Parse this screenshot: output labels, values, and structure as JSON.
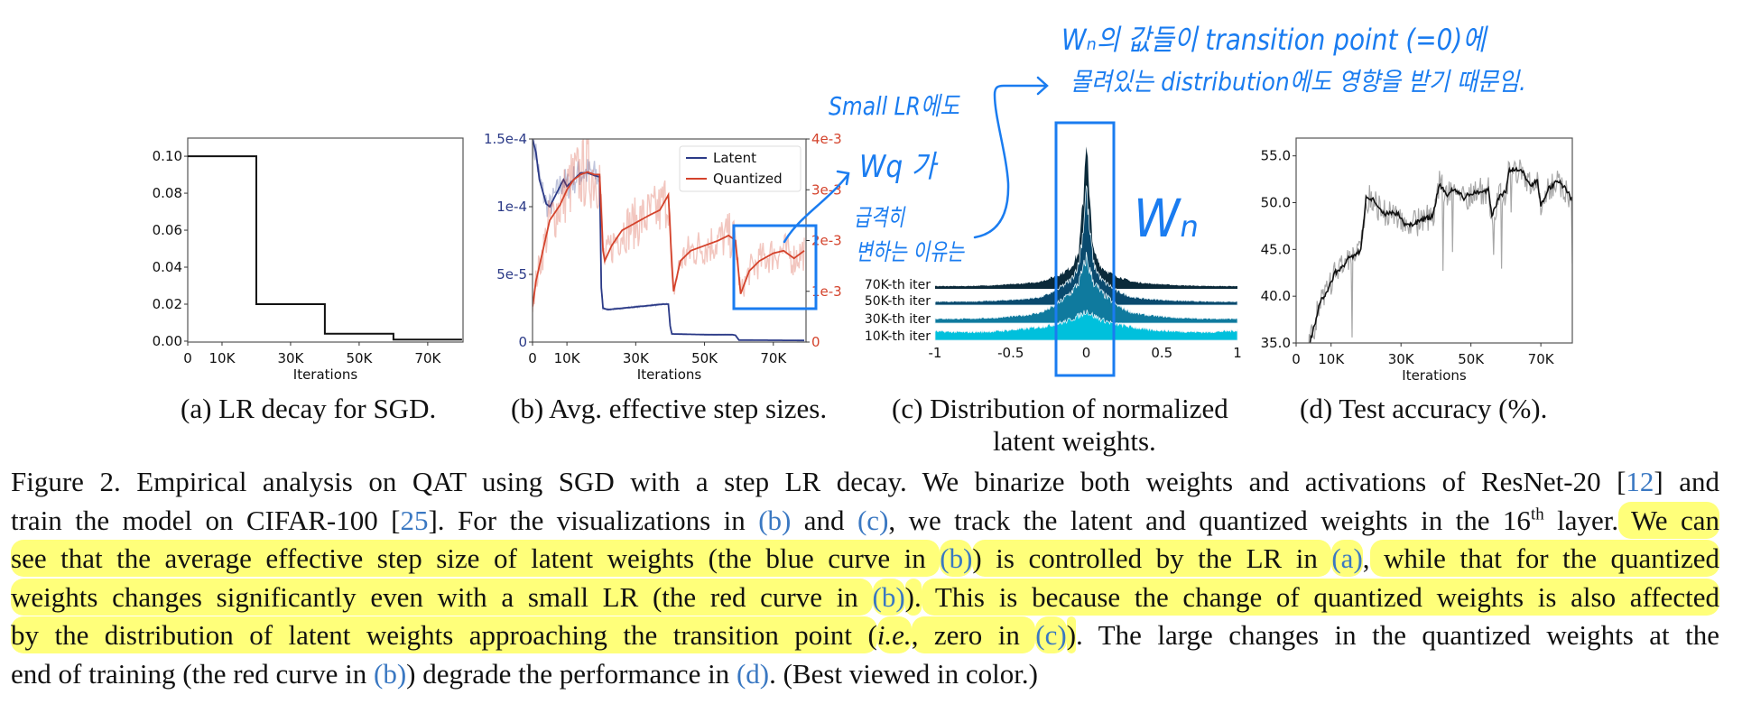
{
  "chart_data": [
    {
      "id": "a",
      "type": "line",
      "title": "",
      "xlabel": "Iterations",
      "ylabel": "",
      "xlim": [
        0,
        80300
      ],
      "ylim": [
        -0.0005,
        0.1098
      ],
      "x_ticks": [
        0,
        10000,
        30000,
        50000,
        70000
      ],
      "x_tick_labels": [
        "0",
        "10K",
        "30K",
        "50K",
        "70K"
      ],
      "y_ticks": [
        0,
        0.02,
        0.04,
        0.06,
        0.08,
        0.1
      ],
      "y_tick_labels": [
        "0.00",
        "0.02",
        "0.04",
        "0.06",
        "0.08",
        "0.10"
      ],
      "series": [
        {
          "name": "LR",
          "color": "#111111",
          "x": [
            0,
            20000,
            20000,
            40000,
            40000,
            60000,
            60000,
            80000
          ],
          "y": [
            0.1,
            0.1,
            0.02,
            0.02,
            0.004,
            0.004,
            0.0008,
            0.0008
          ]
        }
      ]
    },
    {
      "id": "b",
      "type": "line",
      "title": "",
      "xlabel": "Iterations",
      "xlim": [
        0,
        79500
      ],
      "ylim_left": [
        0,
        0.00015
      ],
      "ylim_right": [
        0,
        0.004
      ],
      "x_ticks": [
        0,
        10000,
        30000,
        50000,
        70000
      ],
      "x_tick_labels": [
        "0",
        "10K",
        "30K",
        "50K",
        "70K"
      ],
      "y_ticks_left": [
        0,
        5e-05,
        0.0001,
        0.00015
      ],
      "y_tick_labels_left": [
        "0",
        "5e-5",
        "1e-4",
        "1.5e-4"
      ],
      "y_ticks_right": [
        0,
        0.001,
        0.002,
        0.003,
        0.004
      ],
      "y_tick_labels_right": [
        "0",
        "1e-3",
        "2e-3",
        "3e-3",
        "4e-3"
      ],
      "legend": "top-right",
      "series": [
        {
          "name": "Latent",
          "axis": "left",
          "color": "#2b3a87",
          "x": [
            0,
            1000,
            2000,
            4000,
            5000,
            6000,
            8000,
            9000,
            10000,
            12000,
            14000,
            16000,
            18000,
            19500,
            20000,
            20500,
            22000,
            30000,
            38000,
            39500,
            40000,
            40500,
            50000,
            58000,
            59000,
            60000,
            79000
          ],
          "y": [
            0.00015,
            0.00014,
            0.00012,
            0.000102,
            0.0001,
            0.000105,
            0.000115,
            0.00012,
            0.000115,
            0.00012,
            0.000125,
            0.000125,
            0.000123,
            0.000122,
            4e-05,
            2.5e-05,
            2.4e-05,
            2.6e-05,
            2.8e-05,
            2.8e-05,
            1.2e-05,
            6e-06,
            5.5e-06,
            5.5e-06,
            5e-06,
            1.5e-06,
            1.2e-06
          ]
        },
        {
          "name": "Quantized",
          "axis": "right",
          "color": "#d4432c",
          "x": [
            0,
            1000,
            3000,
            5000,
            8000,
            10000,
            12000,
            14000,
            16000,
            18000,
            19500,
            20500,
            21000,
            23000,
            26000,
            30000,
            34000,
            37000,
            39500,
            40500,
            41000,
            43000,
            46000,
            50000,
            54000,
            57000,
            59000,
            60000,
            60500,
            63000,
            66000,
            70000,
            73000,
            76000,
            79000
          ],
          "y": [
            0.0007,
            0.0012,
            0.0018,
            0.0024,
            0.0027,
            0.003,
            0.0032,
            0.0033,
            0.00335,
            0.0033,
            0.0033,
            0.0018,
            0.0016,
            0.0019,
            0.0022,
            0.00235,
            0.0025,
            0.0026,
            0.0029,
            0.0015,
            0.001,
            0.0016,
            0.0018,
            0.0019,
            0.002,
            0.0021,
            0.002,
            0.0013,
            0.00095,
            0.0014,
            0.0016,
            0.00175,
            0.0018,
            0.00165,
            0.0018
          ]
        }
      ]
    },
    {
      "id": "c",
      "type": "area",
      "title": "",
      "xlabel": "",
      "xlim": [
        -1,
        1
      ],
      "x_ticks": [
        -1,
        -0.5,
        0,
        0.5,
        1
      ],
      "x_tick_labels": [
        "-1",
        "-0.5",
        "0",
        "0.5",
        "1"
      ],
      "x": [
        -1,
        -0.8,
        -0.6,
        -0.4,
        -0.3,
        -0.2,
        -0.15,
        -0.1,
        -0.05,
        -0.02,
        0,
        0.02,
        0.05,
        0.1,
        0.15,
        0.2,
        0.3,
        0.4,
        0.6,
        0.8,
        1
      ],
      "series": [
        {
          "name": "70K-th iter",
          "color": "#0b2a3a",
          "y": [
            3,
            3,
            4,
            6,
            8,
            14,
            18,
            24,
            40,
            100,
            173,
            100,
            40,
            24,
            18,
            14,
            8,
            6,
            4,
            3,
            3
          ]
        },
        {
          "name": "50K-th iter",
          "color": "#0a4a6e",
          "y": [
            4,
            4,
            5,
            7,
            9,
            16,
            22,
            28,
            45,
            85,
            132,
            85,
            45,
            28,
            22,
            16,
            9,
            7,
            5,
            4,
            4
          ]
        },
        {
          "name": "30K-th iter",
          "color": "#0f7a9e",
          "y": [
            5,
            5,
            6,
            9,
            12,
            20,
            27,
            34,
            45,
            60,
            73,
            60,
            45,
            34,
            27,
            20,
            12,
            9,
            6,
            5,
            5
          ]
        },
        {
          "name": "10K-th iter",
          "color": "#00c0dc",
          "y": [
            10,
            9,
            10,
            13,
            15,
            18,
            20,
            23,
            27,
            30,
            33,
            30,
            27,
            23,
            20,
            18,
            15,
            12,
            10,
            9,
            11
          ]
        }
      ]
    },
    {
      "id": "d",
      "type": "line",
      "title": "",
      "xlabel": "Iterations",
      "ylabel": "",
      "xlim": [
        0,
        79000
      ],
      "ylim": [
        35,
        56.9
      ],
      "x_ticks": [
        0,
        10000,
        30000,
        50000,
        70000
      ],
      "x_tick_labels": [
        "0",
        "10K",
        "30K",
        "50K",
        "70K"
      ],
      "y_ticks": [
        35,
        40,
        45,
        50,
        55
      ],
      "y_tick_labels": [
        "35.0",
        "40.0",
        "45.0",
        "50.0",
        "55.0"
      ],
      "series": [
        {
          "name": "Test accuracy",
          "color": "#111111",
          "x": [
            3000,
            5000,
            7000,
            9000,
            11000,
            13000,
            15000,
            17000,
            18500,
            20000,
            22000,
            25000,
            28000,
            30000,
            31000,
            34000,
            37000,
            39000,
            41000,
            43000,
            45000,
            48000,
            50000,
            53000,
            55000,
            56000,
            58000,
            60000,
            61000,
            63000,
            65000,
            67000,
            69000,
            70000,
            72000,
            75000,
            77000,
            79000
          ],
          "y": [
            34,
            36.5,
            39.5,
            40.5,
            42.5,
            43,
            44,
            44.3,
            45,
            50.5,
            50.3,
            48.8,
            49,
            48.5,
            47.5,
            47.8,
            48.3,
            48.5,
            52,
            50.8,
            51.5,
            50.5,
            51,
            51.2,
            51.3,
            48.7,
            50.5,
            51.2,
            53.5,
            53.6,
            53.2,
            51.8,
            52.3,
            49.6,
            51.5,
            52.3,
            51.5,
            50.3
          ]
        }
      ]
    }
  ],
  "subcaptions": {
    "a": "(a) LR decay for SGD.",
    "b": "(b) Avg. effective step sizes.",
    "c_line1": "(c) Distribution of normalized",
    "c_line2": "latent weights.",
    "d": "(d) Test accuracy (%)."
  },
  "annotations": {
    "line1": "Wₙ의 값들이 transition point (=0)에",
    "line2": "몰려있는 distribution에도 영향을 받기 때문임.",
    "small_lr": "Small LR에도",
    "wq": "Wq 가",
    "sudden": "급격히",
    "reason": "변하는 이유는",
    "wn": "Wₙ",
    "color": "#1a7cf0"
  },
  "caption": {
    "lines": [
      [
        {
          "t": "Figure 2. Empirical analysis on QAT using SGD with a step LR decay. We binarize both weights and activations of ResNet-20 [",
          "s": ""
        },
        {
          "t": "12",
          "s": "ref"
        },
        {
          "t": "] and",
          "s": ""
        }
      ],
      [
        {
          "t": "train the model on CIFAR-100 [",
          "s": ""
        },
        {
          "t": "25",
          "s": "ref"
        },
        {
          "t": "]. For the visualizations in ",
          "s": ""
        },
        {
          "t": "(b)",
          "s": "ref"
        },
        {
          "t": " and ",
          "s": ""
        },
        {
          "t": "(c)",
          "s": "ref"
        },
        {
          "t": ", we track the latent and quantized weights in the 16",
          "s": ""
        },
        {
          "t": "th",
          "s": "sup"
        },
        {
          "t": " layer.",
          "s": ""
        },
        {
          "t": " We can",
          "s": "hl"
        }
      ],
      [
        {
          "t": "see that the average effective step size of latent weights (the blue curve in ",
          "s": "hl"
        },
        {
          "t": "(b)",
          "s": "hl ref"
        },
        {
          "t": ") is controlled by the LR in ",
          "s": "hl"
        },
        {
          "t": "(a)",
          "s": "hl ref"
        },
        {
          "t": ",",
          "s": ""
        },
        {
          "t": " while that for the quantized",
          "s": "hl"
        }
      ],
      [
        {
          "t": "weights changes significantly even with a small LR (the red curve in ",
          "s": "hl"
        },
        {
          "t": "(b)",
          "s": "hl ref"
        },
        {
          "t": ").",
          "s": "hl"
        },
        {
          "t": " This is because the change of quantized weights is also affected",
          "s": "hl"
        }
      ],
      [
        {
          "t": "by the distribution of latent weights approaching the transition point (",
          "s": "hl"
        },
        {
          "t": "i.e.",
          "s": "hl it"
        },
        {
          "t": ", zero in ",
          "s": "hl"
        },
        {
          "t": "(c)",
          "s": "hl ref"
        },
        {
          "t": ")",
          "s": "hl"
        },
        {
          "t": ". The large changes in the quantized weights at the",
          "s": ""
        }
      ],
      [
        {
          "t": "end of training (the red curve in ",
          "s": ""
        },
        {
          "t": "(b)",
          "s": "ref"
        },
        {
          "t": ") degrade the performance in ",
          "s": ""
        },
        {
          "t": "(d)",
          "s": "ref"
        },
        {
          "t": ". (Best viewed in color.)",
          "s": ""
        }
      ]
    ]
  }
}
